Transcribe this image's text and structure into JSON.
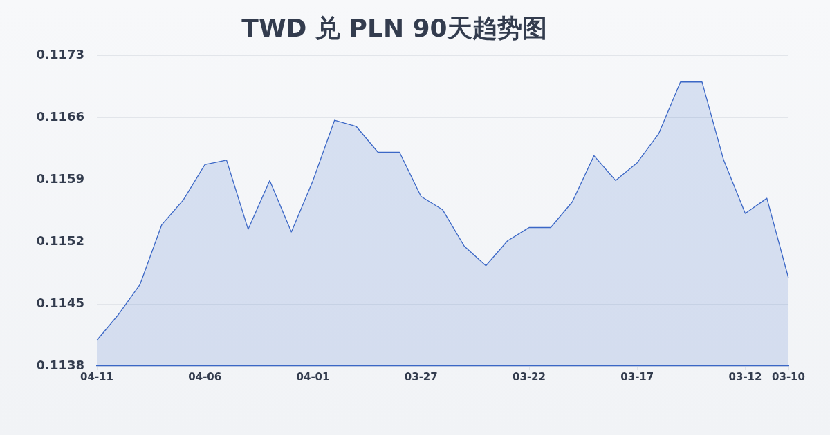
{
  "chart_data": {
    "type": "area",
    "title": "TWD 兑 PLN 90天趋势图",
    "categories": [
      "04-11",
      null,
      null,
      null,
      null,
      "04-06",
      null,
      null,
      null,
      null,
      "04-01",
      null,
      null,
      null,
      null,
      "03-27",
      null,
      null,
      null,
      null,
      "03-22",
      null,
      null,
      null,
      null,
      "03-17",
      null,
      null,
      null,
      null,
      "03-12",
      null,
      "03-10"
    ],
    "values": [
      0.11409,
      0.11438,
      0.11472,
      0.11539,
      0.11567,
      0.11607,
      0.11612,
      0.11534,
      0.11589,
      0.11531,
      0.11589,
      0.11657,
      0.1165,
      0.11621,
      0.11621,
      0.11571,
      0.11556,
      0.11515,
      0.11493,
      0.11521,
      0.11536,
      0.11536,
      0.11565,
      0.11617,
      0.11589,
      0.11609,
      0.11642,
      0.117,
      0.117,
      0.11612,
      0.11552,
      0.11569,
      0.11479
    ],
    "color": "#3b67c6",
    "ylim": [
      0.1138,
      0.1173
    ],
    "yticks": [
      0.1138,
      0.1145,
      0.1152,
      0.1159,
      0.1166,
      0.1173
    ],
    "grid": "y"
  }
}
